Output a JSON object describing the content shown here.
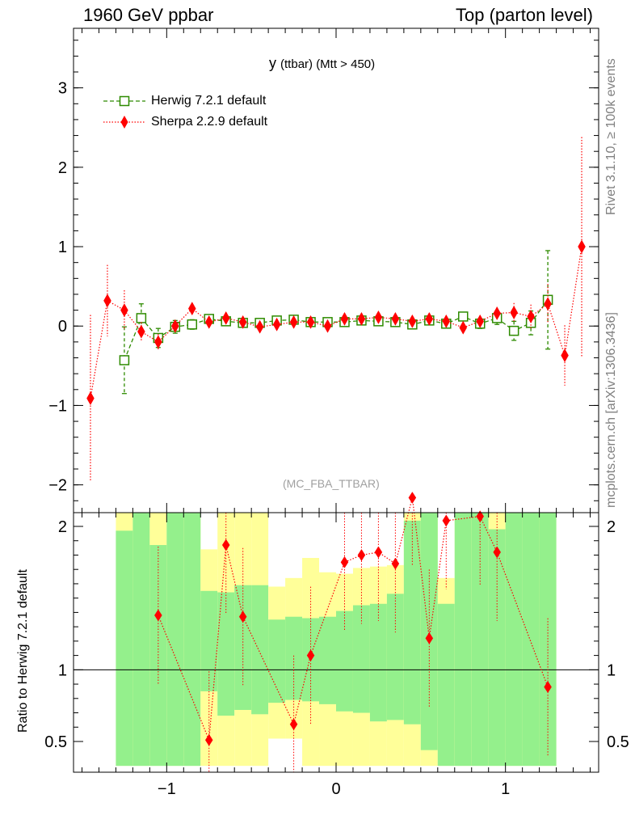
{
  "header": {
    "left": "1960 GeV ppbar",
    "right": "Top (parton level)"
  },
  "side_labels": {
    "rivet": "Rivet 3.1.10, ≥ 100k events",
    "mcplots": "mcplots.cern.ch [arXiv:1306.3436]"
  },
  "plot": {
    "title_main": "y",
    "title_small": "(ttbar) (Mtt > 450)",
    "watermark": "(MC_FBA_TTBAR)"
  },
  "legend": [
    {
      "label": "Herwig 7.2.1 default",
      "color": "#2e8b00",
      "marker": "open-square",
      "line": "dashed"
    },
    {
      "label": "Sherpa 2.2.9 default",
      "color": "#ff0000",
      "marker": "diamond",
      "line": "dotted"
    }
  ],
  "ratio_panel": {
    "ylabel": "Ratio to Herwig 7.2.1 default"
  },
  "colors": {
    "band_inner": "#94f08c",
    "band_outer": "#ffff99",
    "herwig": "#2e8b00",
    "sherpa": "#ff0000"
  },
  "chart_data": {
    "type": "scatter",
    "xlim": [
      -1.55,
      1.55
    ],
    "main": {
      "ylim": [
        -2.35,
        3.75
      ],
      "yticks": [
        -2,
        -1,
        0,
        1,
        2,
        3
      ],
      "ytick_labels": [
        "−2",
        "−1",
        "0",
        "1",
        "2",
        "3"
      ]
    },
    "ratio": {
      "ylim": [
        0.33,
        2.33
      ],
      "yticks": [
        0.5,
        1,
        2
      ],
      "ytick_labels": [
        "0.5",
        "1",
        "2"
      ],
      "reference": 1
    },
    "xticks": [
      -1,
      0,
      1
    ],
    "xtick_labels": [
      "−1",
      "0",
      "1"
    ],
    "series": [
      {
        "name": "Herwig 7.2.1 default",
        "x": [
          -1.25,
          -1.15,
          -1.05,
          -0.95,
          -0.85,
          -0.75,
          -0.65,
          -0.55,
          -0.45,
          -0.35,
          -0.25,
          -0.15,
          -0.05,
          0.05,
          0.15,
          0.25,
          0.35,
          0.45,
          0.55,
          0.65,
          0.75,
          0.85,
          0.95,
          1.05,
          1.15,
          1.25
        ],
        "y": [
          -0.43,
          0.1,
          -0.15,
          -0.01,
          0.02,
          0.09,
          0.06,
          0.04,
          0.04,
          0.07,
          0.08,
          0.05,
          0.05,
          0.05,
          0.07,
          0.06,
          0.05,
          0.02,
          0.07,
          0.03,
          0.12,
          0.03,
          0.1,
          -0.06,
          0.04,
          0.33
        ],
        "yerr": [
          0.42,
          0.18,
          0.12,
          0.08,
          0.06,
          0.05,
          0.05,
          0.04,
          0.04,
          0.04,
          0.04,
          0.04,
          0.04,
          0.04,
          0.04,
          0.04,
          0.04,
          0.04,
          0.05,
          0.05,
          0.05,
          0.06,
          0.08,
          0.12,
          0.15,
          0.62
        ]
      },
      {
        "name": "Sherpa 2.2.9 default",
        "x": [
          -1.45,
          -1.35,
          -1.25,
          -1.15,
          -1.05,
          -0.95,
          -0.85,
          -0.75,
          -0.65,
          -0.55,
          -0.45,
          -0.35,
          -0.25,
          -0.15,
          -0.05,
          0.05,
          0.15,
          0.25,
          0.35,
          0.45,
          0.55,
          0.65,
          0.75,
          0.85,
          0.95,
          1.05,
          1.15,
          1.25,
          1.35,
          1.45
        ],
        "y": [
          -0.91,
          0.32,
          0.2,
          -0.07,
          -0.2,
          0.0,
          0.22,
          0.05,
          0.1,
          0.05,
          -0.01,
          0.02,
          0.05,
          0.05,
          0.0,
          0.09,
          0.09,
          0.11,
          0.09,
          0.06,
          0.09,
          0.06,
          -0.02,
          0.06,
          0.16,
          0.17,
          0.12,
          0.28,
          -0.37,
          1.0
        ]
      }
    ],
    "ratio_series": {
      "name": "Sherpa 2.2.9 default",
      "x": [
        -1.05,
        -0.75,
        -0.65,
        -0.55,
        -0.25,
        -0.15,
        0.05,
        0.15,
        0.25,
        0.35,
        0.45,
        0.55,
        0.65,
        0.85,
        0.95,
        1.25
      ],
      "y": [
        1.38,
        0.51,
        1.87,
        1.37,
        0.62,
        1.1,
        1.75,
        1.8,
        1.82,
        1.74,
        2.2,
        1.22,
        2.04,
        2.07,
        1.82,
        0.88
      ]
    },
    "ratio_bands": {
      "x_edges": [
        -1.3,
        -1.2,
        -1.1,
        -1.0,
        -0.9,
        -0.8,
        -0.7,
        -0.6,
        -0.5,
        -0.4,
        -0.3,
        -0.2,
        -0.1,
        0.0,
        0.1,
        0.2,
        0.3,
        0.4,
        0.5,
        0.6,
        0.7,
        0.8,
        0.9,
        1.0,
        1.1,
        1.2,
        1.3
      ],
      "inner_lo": [
        0.33,
        0.33,
        0.33,
        0.33,
        0.33,
        0.85,
        0.68,
        0.72,
        0.69,
        0.77,
        0.79,
        0.78,
        0.76,
        0.71,
        0.7,
        0.64,
        0.65,
        0.62,
        0.44,
        0.33,
        0.33,
        0.33,
        0.33,
        0.33,
        0.33,
        0.33
      ],
      "inner_hi": [
        1.97,
        2.33,
        1.87,
        2.33,
        2.33,
        1.55,
        1.54,
        1.59,
        1.59,
        1.35,
        1.37,
        1.36,
        1.37,
        1.41,
        1.45,
        1.46,
        1.53,
        2.04,
        2.33,
        1.46,
        2.33,
        2.33,
        1.98,
        2.33,
        2.33,
        2.33
      ],
      "outer_lo": [
        0.33,
        0.33,
        0.33,
        0.33,
        0.33,
        0.33,
        0.33,
        0.33,
        0.33,
        0.52,
        0.52,
        0.33,
        0.33,
        0.33,
        0.33,
        0.33,
        0.33,
        0.33,
        0.33,
        0.33,
        0.33,
        0.33,
        0.33,
        0.33,
        0.33,
        0.33
      ],
      "outer_hi": [
        2.33,
        2.33,
        2.33,
        2.33,
        2.33,
        1.84,
        2.22,
        2.26,
        2.27,
        1.58,
        1.64,
        1.78,
        1.68,
        1.67,
        1.71,
        1.72,
        1.73,
        2.33,
        2.33,
        1.64,
        2.33,
        2.33,
        2.33,
        2.33,
        2.33,
        2.33
      ]
    }
  }
}
